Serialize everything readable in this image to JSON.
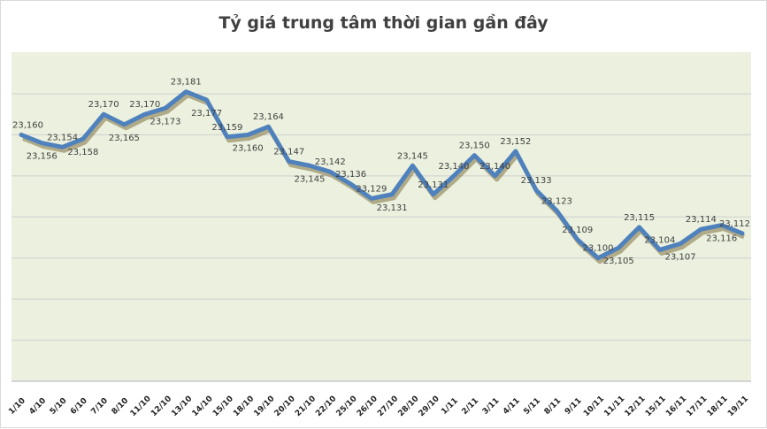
{
  "chart_data": {
    "type": "line",
    "title": "Tỷ giá trung tâm thời gian gần đây",
    "xlabel": "",
    "ylabel": "",
    "ylim": [
      23040,
      23180
    ],
    "grid": true,
    "legend": "none",
    "categories": [
      "1/10",
      "4/10",
      "5/10",
      "6/10",
      "7/10",
      "8/10",
      "11/10",
      "12/10",
      "13/10",
      "14/10",
      "15/10",
      "18/10",
      "19/10",
      "20/10",
      "21/10",
      "22/10",
      "25/10",
      "26/10",
      "27/10",
      "28/10",
      "29/10",
      "1/11",
      "2/11",
      "3/11",
      "4/11",
      "5/11",
      "8/11",
      "9/11",
      "10/11",
      "11/11",
      "12/11",
      "15/11",
      "16/11",
      "17/11",
      "18/11",
      "19/11"
    ],
    "series": [
      {
        "name": "Tỷ giá trung tâm",
        "color": "#4f81bd",
        "values": [
          23160,
          23156,
          23154,
          23158,
          23170,
          23165,
          23170,
          23173,
          23181,
          23177,
          23159,
          23160,
          23164,
          23147,
          23145,
          23142,
          23136,
          23129,
          23131,
          23145,
          23131,
          23140,
          23150,
          23140,
          23152,
          23133,
          23123,
          23109,
          23100,
          23105,
          23115,
          23104,
          23107,
          23114,
          23116,
          23112
        ],
        "labels": [
          "23,160",
          "23,156",
          "23,154",
          "23,158",
          "23,170",
          "23,165",
          "23,170",
          "23,173",
          "23,181",
          "23,177",
          "23,159",
          "23,160",
          "23,164",
          "23,147",
          "23,145",
          "23,142",
          "23,136",
          "23,129",
          "23,131",
          "23,145",
          "23,131",
          "23,140",
          "23,150",
          "23,140",
          "23,152",
          "23,133",
          "23,123",
          "23,109",
          "23,100",
          "23,105",
          "23,115",
          "23,104",
          "23,107",
          "23,114",
          "23,116",
          "23,112"
        ]
      }
    ]
  }
}
